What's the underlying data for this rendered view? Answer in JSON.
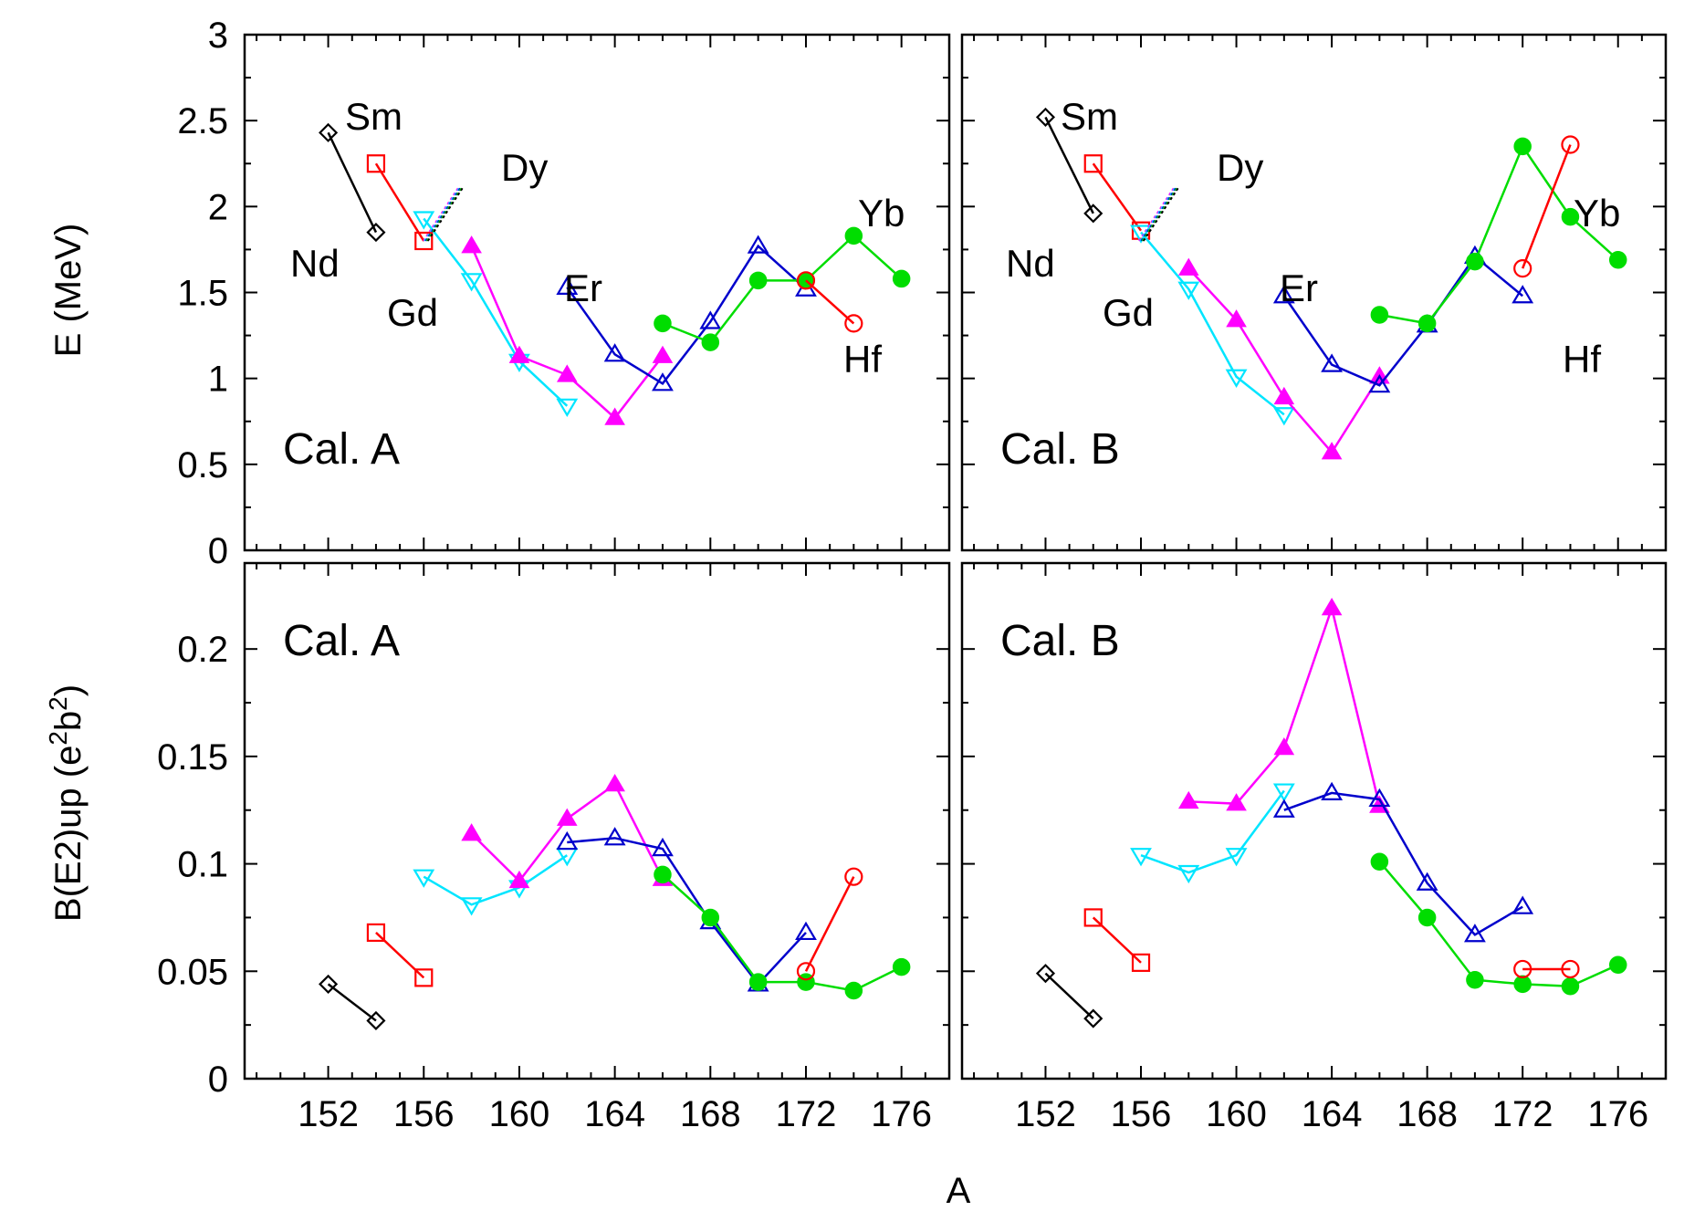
{
  "chart_data": [
    {
      "type": "line",
      "panel": "top-left",
      "annotation": "Cal. A",
      "ylabel": "E (MeV)",
      "xlabel": "",
      "xlim": [
        148.5,
        178
      ],
      "ylim": [
        0,
        3
      ],
      "xticks": [
        "152",
        "156",
        "160",
        "164",
        "168",
        "172",
        "176"
      ],
      "yticks": [
        "0",
        "0.5",
        "1",
        "1.5",
        "2",
        "2.5",
        "3"
      ],
      "series": [
        {
          "name": "Nd",
          "color": "#000000",
          "marker": "diamond-open",
          "x": [
            152,
            154
          ],
          "y": [
            2.43,
            1.85
          ]
        },
        {
          "name": "Sm",
          "color": "#ff0000",
          "marker": "square-open",
          "x": [
            154,
            156
          ],
          "y": [
            2.25,
            1.8
          ]
        },
        {
          "name": "Gd",
          "color": "#00e5ff",
          "marker": "triangle-down-open",
          "x": [
            156,
            158,
            160,
            162
          ],
          "y": [
            1.93,
            1.57,
            1.1,
            0.84
          ]
        },
        {
          "name": "Dy",
          "color": "#ff00ff",
          "marker": "triangle-up-filled",
          "x": [
            158,
            160,
            162,
            164,
            166
          ],
          "y": [
            1.77,
            1.13,
            1.02,
            0.77,
            1.13
          ]
        },
        {
          "name": "Er",
          "color": "#0000cc",
          "marker": "triangle-up-open",
          "x": [
            162,
            164,
            166,
            168,
            170,
            172
          ],
          "y": [
            1.53,
            1.14,
            0.97,
            1.33,
            1.77,
            1.52
          ]
        },
        {
          "name": "Yb",
          "color": "#00dd00",
          "marker": "circle-filled",
          "x": [
            166,
            168,
            170,
            172,
            174,
            176
          ],
          "y": [
            1.32,
            1.21,
            1.57,
            1.57,
            1.83,
            1.58
          ]
        },
        {
          "name": "Hf",
          "color": "#ff0000",
          "marker": "circle-open",
          "x": [
            172,
            174
          ],
          "y": [
            1.57,
            1.32
          ]
        }
      ],
      "labels": [
        "Sm",
        "Dy",
        "Nd",
        "Gd",
        "Er",
        "Yb",
        "Hf"
      ]
    },
    {
      "type": "line",
      "panel": "top-right",
      "annotation": "Cal. B",
      "ylabel": "",
      "xlabel": "",
      "xlim": [
        148.5,
        178
      ],
      "ylim": [
        0,
        3
      ],
      "xticks": [
        "152",
        "156",
        "160",
        "164",
        "168",
        "172",
        "176"
      ],
      "yticks": [
        "0",
        "0.5",
        "1",
        "1.5",
        "2",
        "2.5",
        "3"
      ],
      "series": [
        {
          "name": "Nd",
          "color": "#000000",
          "marker": "diamond-open",
          "x": [
            152,
            154
          ],
          "y": [
            2.52,
            1.96
          ]
        },
        {
          "name": "Sm",
          "color": "#ff0000",
          "marker": "square-open",
          "x": [
            154,
            156
          ],
          "y": [
            2.25,
            1.86
          ]
        },
        {
          "name": "Gd",
          "color": "#00e5ff",
          "marker": "triangle-down-open",
          "x": [
            156,
            158,
            160,
            162
          ],
          "y": [
            1.85,
            1.52,
            1.01,
            0.79
          ]
        },
        {
          "name": "Dy",
          "color": "#ff00ff",
          "marker": "triangle-up-filled",
          "x": [
            158,
            160,
            162,
            164,
            166
          ],
          "y": [
            1.64,
            1.34,
            0.89,
            0.57,
            1.01
          ]
        },
        {
          "name": "Er",
          "color": "#0000cc",
          "marker": "triangle-up-open",
          "x": [
            162,
            164,
            166,
            168,
            170,
            172
          ],
          "y": [
            1.48,
            1.08,
            0.96,
            1.31,
            1.71,
            1.48
          ]
        },
        {
          "name": "Yb",
          "color": "#00dd00",
          "marker": "circle-filled",
          "x": [
            166,
            168,
            170,
            172,
            174,
            176
          ],
          "y": [
            1.37,
            1.32,
            1.68,
            2.35,
            1.94,
            1.69
          ]
        },
        {
          "name": "Hf",
          "color": "#ff0000",
          "marker": "circle-open",
          "x": [
            172,
            174
          ],
          "y": [
            1.64,
            2.36
          ]
        }
      ],
      "labels": [
        "Sm",
        "Dy",
        "Nd",
        "Gd",
        "Er",
        "Yb",
        "Hf"
      ]
    },
    {
      "type": "line",
      "panel": "bottom-left",
      "annotation": "Cal. A",
      "ylabel": "B(E2)up (e2b2)",
      "xlabel": "A",
      "xlim": [
        148.5,
        178
      ],
      "ylim": [
        0,
        0.24
      ],
      "xticks": [
        "152",
        "156",
        "160",
        "164",
        "168",
        "172",
        "176"
      ],
      "yticks": [
        "0",
        "0.05",
        "0.1",
        "0.15",
        "0.2"
      ],
      "series": [
        {
          "name": "Nd",
          "color": "#000000",
          "marker": "diamond-open",
          "x": [
            152,
            154
          ],
          "y": [
            0.044,
            0.027
          ]
        },
        {
          "name": "Sm",
          "color": "#ff0000",
          "marker": "square-open",
          "x": [
            154,
            156
          ],
          "y": [
            0.068,
            0.047
          ]
        },
        {
          "name": "Gd",
          "color": "#00e5ff",
          "marker": "triangle-down-open",
          "x": [
            156,
            158,
            160,
            162
          ],
          "y": [
            0.094,
            0.081,
            0.089,
            0.104
          ]
        },
        {
          "name": "Dy",
          "color": "#ff00ff",
          "marker": "triangle-up-filled",
          "x": [
            158,
            160,
            162,
            164,
            166
          ],
          "y": [
            0.114,
            0.092,
            0.121,
            0.137,
            0.093
          ]
        },
        {
          "name": "Er",
          "color": "#0000cc",
          "marker": "triangle-up-open",
          "x": [
            162,
            164,
            166,
            168,
            170,
            172
          ],
          "y": [
            0.11,
            0.112,
            0.107,
            0.073,
            0.044,
            0.068
          ]
        },
        {
          "name": "Yb",
          "color": "#00dd00",
          "marker": "circle-filled",
          "x": [
            166,
            168,
            170,
            172,
            174,
            176
          ],
          "y": [
            0.095,
            0.075,
            0.045,
            0.045,
            0.041,
            0.052
          ]
        },
        {
          "name": "Hf",
          "color": "#ff0000",
          "marker": "circle-open",
          "x": [
            172,
            174
          ],
          "y": [
            0.05,
            0.094
          ]
        }
      ]
    },
    {
      "type": "line",
      "panel": "bottom-right",
      "annotation": "Cal. B",
      "ylabel": "",
      "xlabel": "A",
      "xlim": [
        148.5,
        178
      ],
      "ylim": [
        0,
        0.24
      ],
      "xticks": [
        "152",
        "156",
        "160",
        "164",
        "168",
        "172",
        "176"
      ],
      "yticks": [
        "0",
        "0.05",
        "0.1",
        "0.15",
        "0.2"
      ],
      "series": [
        {
          "name": "Nd",
          "color": "#000000",
          "marker": "diamond-open",
          "x": [
            152,
            154
          ],
          "y": [
            0.049,
            0.028
          ]
        },
        {
          "name": "Sm",
          "color": "#ff0000",
          "marker": "square-open",
          "x": [
            154,
            156
          ],
          "y": [
            0.075,
            0.054
          ]
        },
        {
          "name": "Gd",
          "color": "#00e5ff",
          "marker": "triangle-down-open",
          "x": [
            156,
            158,
            160,
            162
          ],
          "y": [
            0.104,
            0.096,
            0.104,
            0.134
          ]
        },
        {
          "name": "Dy",
          "color": "#ff00ff",
          "marker": "triangle-up-filled",
          "x": [
            158,
            160,
            162,
            164,
            166
          ],
          "y": [
            0.129,
            0.128,
            0.154,
            0.219,
            0.127
          ]
        },
        {
          "name": "Er",
          "color": "#0000cc",
          "marker": "triangle-up-open",
          "x": [
            162,
            164,
            166,
            168,
            170,
            172
          ],
          "y": [
            0.125,
            0.133,
            0.13,
            0.091,
            0.067,
            0.08
          ]
        },
        {
          "name": "Yb",
          "color": "#00dd00",
          "marker": "circle-filled",
          "x": [
            166,
            168,
            170,
            172,
            174,
            176
          ],
          "y": [
            0.101,
            0.075,
            0.046,
            0.044,
            0.043,
            0.053
          ]
        },
        {
          "name": "Hf",
          "color": "#ff0000",
          "marker": "circle-open",
          "x": [
            172,
            174
          ],
          "y": [
            0.051,
            0.051
          ]
        }
      ]
    }
  ],
  "axes": {
    "x_title": "A",
    "y_title_top": "E (MeV)",
    "y_title_bottom": "B(E2)up (e2b2)",
    "y_title_bottom_parts": {
      "prefix": "B(E2)up (e",
      "sup1": "2",
      "mid": "b",
      "sup2": "2",
      "suffix": ")"
    }
  }
}
